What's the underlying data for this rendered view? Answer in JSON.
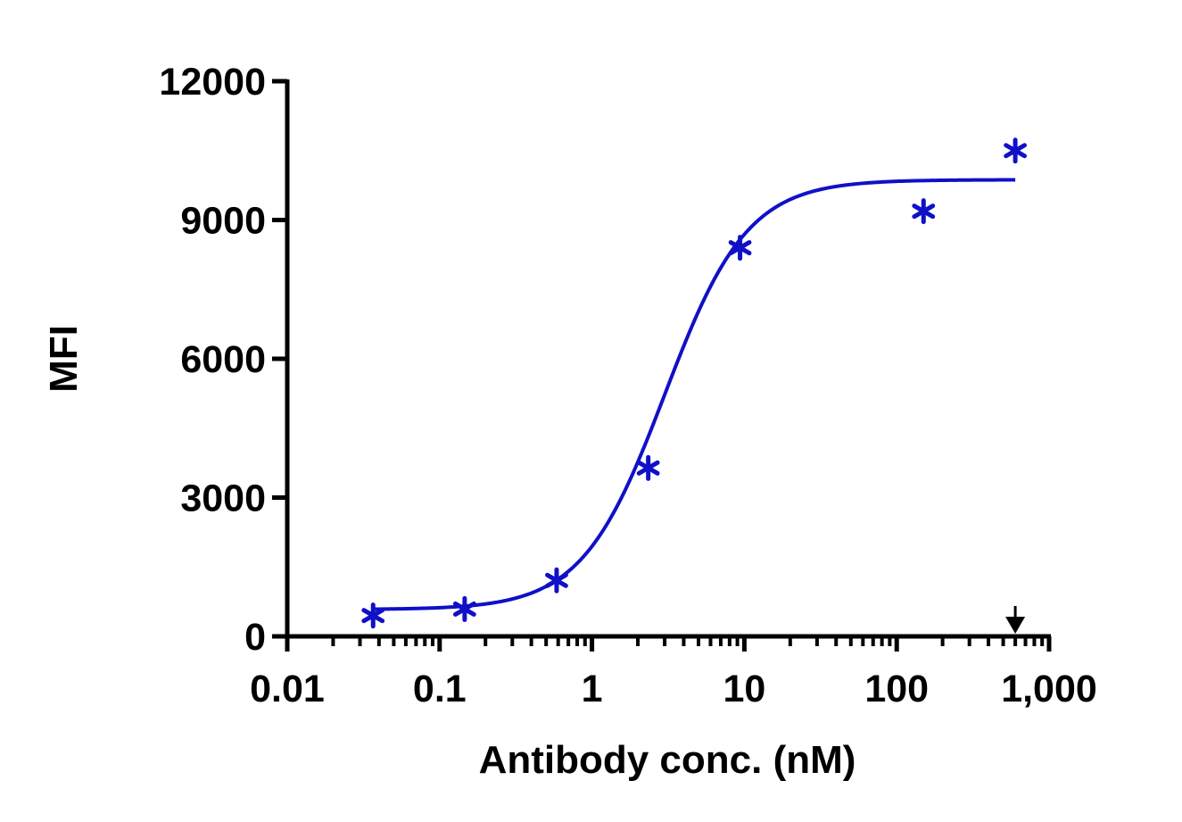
{
  "chart_data": {
    "type": "scatter",
    "title": "",
    "xlabel": "Antibody conc. (nM)",
    "ylabel": "MFI",
    "x_scale": "log",
    "xlim": [
      0.01,
      1000
    ],
    "ylim": [
      0,
      12000
    ],
    "x_ticks": [
      0.01,
      0.1,
      1,
      10,
      100,
      1000
    ],
    "x_tick_labels": [
      "0.01",
      "0.1",
      "1",
      "10",
      "100",
      "1,000"
    ],
    "y_ticks": [
      0,
      3000,
      6000,
      9000,
      12000
    ],
    "y_tick_labels": [
      "0",
      "3000",
      "6000",
      "9000",
      "12000"
    ],
    "grid": false,
    "legend": "none",
    "colors": {
      "series": "#1010c8",
      "axis": "#000000",
      "arrow": "#000000"
    },
    "series": [
      {
        "marker": "asterisk",
        "x": [
          0.0366,
          0.146,
          0.586,
          2.34,
          9.37,
          150,
          600
        ],
        "y": [
          450,
          590,
          1210,
          3640,
          8400,
          9190,
          10500
        ]
      }
    ],
    "fit_curve": {
      "model": "4PL",
      "bottom": 580,
      "top": 9870,
      "ec50": 3.0,
      "hill": 1.6,
      "x_range": [
        0.0366,
        600
      ]
    },
    "annotations": [
      {
        "type": "arrow-down",
        "x": 600,
        "y": 0
      }
    ]
  }
}
